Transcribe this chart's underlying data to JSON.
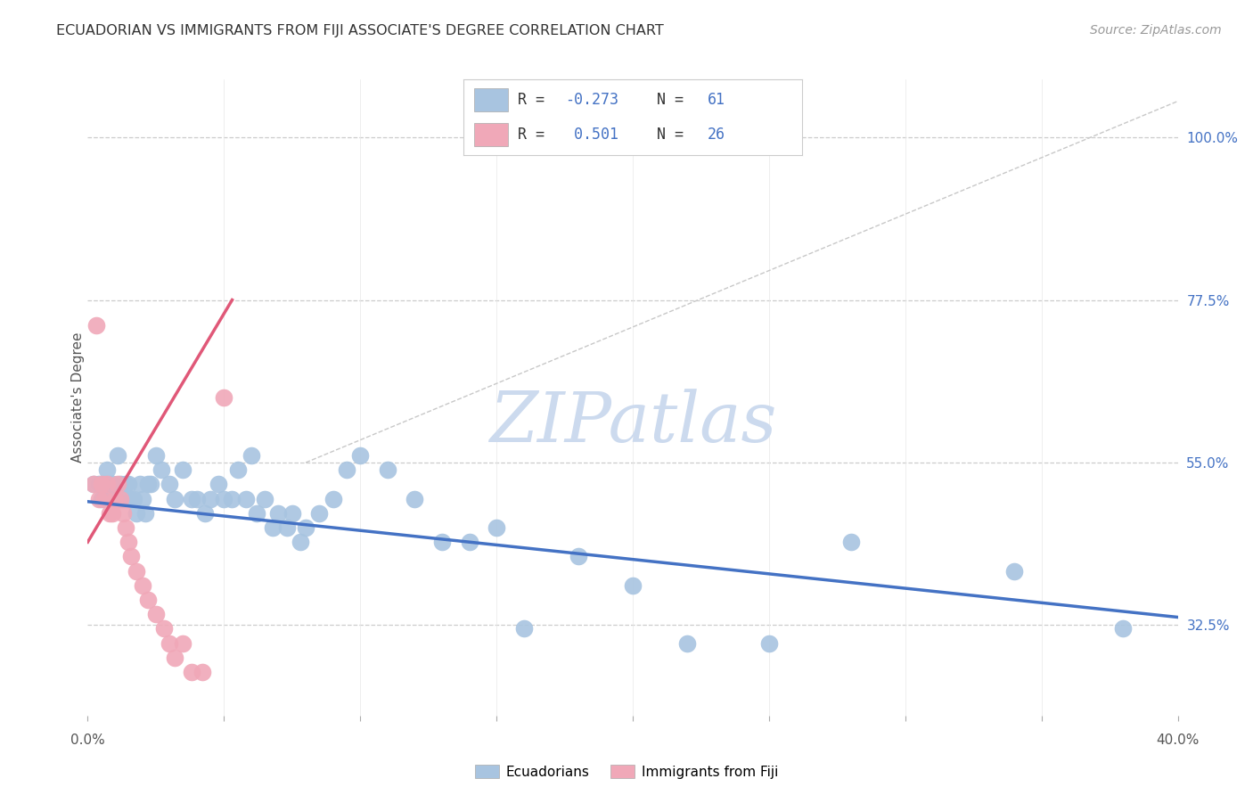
{
  "title": "ECUADORIAN VS IMMIGRANTS FROM FIJI ASSOCIATE'S DEGREE CORRELATION CHART",
  "source": "Source: ZipAtlas.com",
  "ylabel": "Associate's Degree",
  "right_yticks": [
    "100.0%",
    "77.5%",
    "55.0%",
    "32.5%"
  ],
  "right_ytick_vals": [
    1.0,
    0.775,
    0.55,
    0.325
  ],
  "xlim": [
    0.0,
    0.4
  ],
  "ylim": [
    0.2,
    1.08
  ],
  "blue_color": "#a8c4e0",
  "pink_color": "#f0a8b8",
  "blue_line_color": "#4472C4",
  "pink_line_color": "#e05878",
  "ref_line_color": "#c8c8c8",
  "watermark": "ZIPatlas",
  "watermark_color": "#ccdaee",
  "blue_scatter_x": [
    0.002,
    0.004,
    0.005,
    0.006,
    0.007,
    0.008,
    0.009,
    0.01,
    0.011,
    0.012,
    0.013,
    0.014,
    0.015,
    0.016,
    0.017,
    0.018,
    0.019,
    0.02,
    0.021,
    0.022,
    0.023,
    0.025,
    0.027,
    0.03,
    0.032,
    0.035,
    0.038,
    0.04,
    0.043,
    0.045,
    0.048,
    0.05,
    0.053,
    0.055,
    0.058,
    0.06,
    0.062,
    0.065,
    0.068,
    0.07,
    0.073,
    0.075,
    0.078,
    0.08,
    0.085,
    0.09,
    0.095,
    0.1,
    0.11,
    0.12,
    0.13,
    0.14,
    0.15,
    0.16,
    0.18,
    0.2,
    0.22,
    0.25,
    0.28,
    0.34,
    0.38
  ],
  "blue_scatter_y": [
    0.52,
    0.52,
    0.5,
    0.52,
    0.54,
    0.5,
    0.52,
    0.5,
    0.56,
    0.52,
    0.5,
    0.52,
    0.52,
    0.5,
    0.5,
    0.48,
    0.52,
    0.5,
    0.48,
    0.52,
    0.52,
    0.56,
    0.54,
    0.52,
    0.5,
    0.54,
    0.5,
    0.5,
    0.48,
    0.5,
    0.52,
    0.5,
    0.5,
    0.54,
    0.5,
    0.56,
    0.48,
    0.5,
    0.46,
    0.48,
    0.46,
    0.48,
    0.44,
    0.46,
    0.48,
    0.5,
    0.54,
    0.56,
    0.54,
    0.5,
    0.44,
    0.44,
    0.46,
    0.32,
    0.42,
    0.38,
    0.3,
    0.3,
    0.44,
    0.4,
    0.32
  ],
  "pink_scatter_x": [
    0.002,
    0.003,
    0.004,
    0.005,
    0.006,
    0.007,
    0.008,
    0.009,
    0.01,
    0.011,
    0.012,
    0.013,
    0.014,
    0.015,
    0.016,
    0.018,
    0.02,
    0.022,
    0.025,
    0.028,
    0.03,
    0.032,
    0.035,
    0.038,
    0.042,
    0.05
  ],
  "pink_scatter_y": [
    0.52,
    0.74,
    0.5,
    0.52,
    0.5,
    0.52,
    0.48,
    0.48,
    0.5,
    0.52,
    0.5,
    0.48,
    0.46,
    0.44,
    0.42,
    0.4,
    0.38,
    0.36,
    0.34,
    0.32,
    0.3,
    0.28,
    0.3,
    0.26,
    0.26,
    0.64
  ],
  "blue_trend_x": [
    0.0,
    0.4
  ],
  "blue_trend_y": [
    0.496,
    0.336
  ],
  "pink_trend_x": [
    0.0,
    0.053
  ],
  "pink_trend_y": [
    0.44,
    0.775
  ],
  "ref_line_x": [
    0.08,
    0.4
  ],
  "ref_line_y": [
    0.55,
    1.05
  ],
  "xtick_positions": [
    0.0,
    0.05,
    0.1,
    0.15,
    0.2,
    0.25,
    0.3,
    0.35,
    0.4
  ],
  "grid_x_positions": [
    0.05,
    0.1,
    0.15,
    0.2,
    0.25,
    0.3,
    0.35
  ]
}
